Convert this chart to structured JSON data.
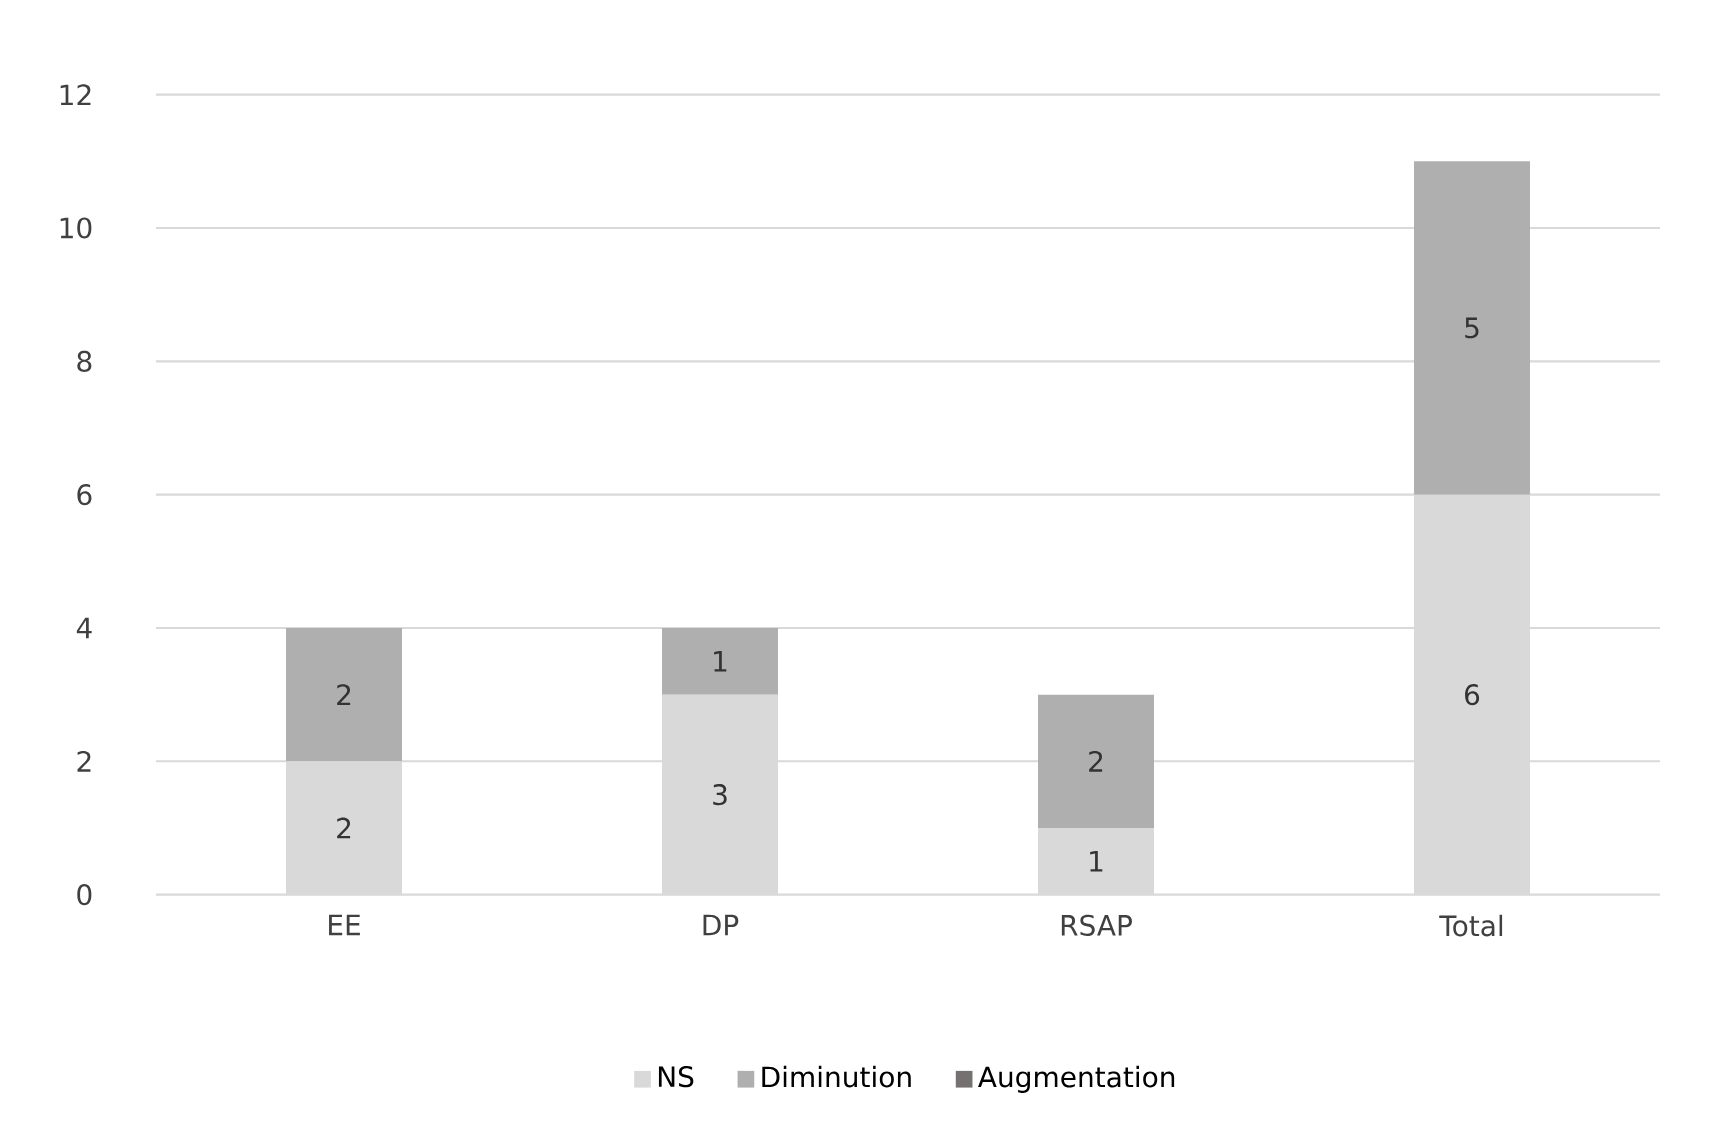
{
  "chart_data": {
    "type": "bar",
    "stacked": true,
    "categories": [
      "EE",
      "DP",
      "RSAP",
      "Total"
    ],
    "series": [
      {
        "name": "NS",
        "color": "#d9d9d9",
        "values": [
          2,
          3,
          1,
          6
        ],
        "value_labels": [
          "2",
          "3",
          "1",
          "6"
        ]
      },
      {
        "name": "Diminution",
        "color": "#afafaf",
        "values": [
          2,
          1,
          2,
          5
        ],
        "value_labels": [
          "2",
          "1",
          "2",
          "5"
        ]
      },
      {
        "name": "Augmentation",
        "color": "#767171",
        "values": [
          0,
          0,
          0,
          0
        ],
        "value_labels": [
          null,
          null,
          null,
          null
        ]
      }
    ],
    "ylim": [
      0,
      12
    ],
    "yticks": [
      0,
      2,
      4,
      6,
      8,
      10,
      12
    ],
    "grid": "y",
    "legend": "bottom"
  }
}
